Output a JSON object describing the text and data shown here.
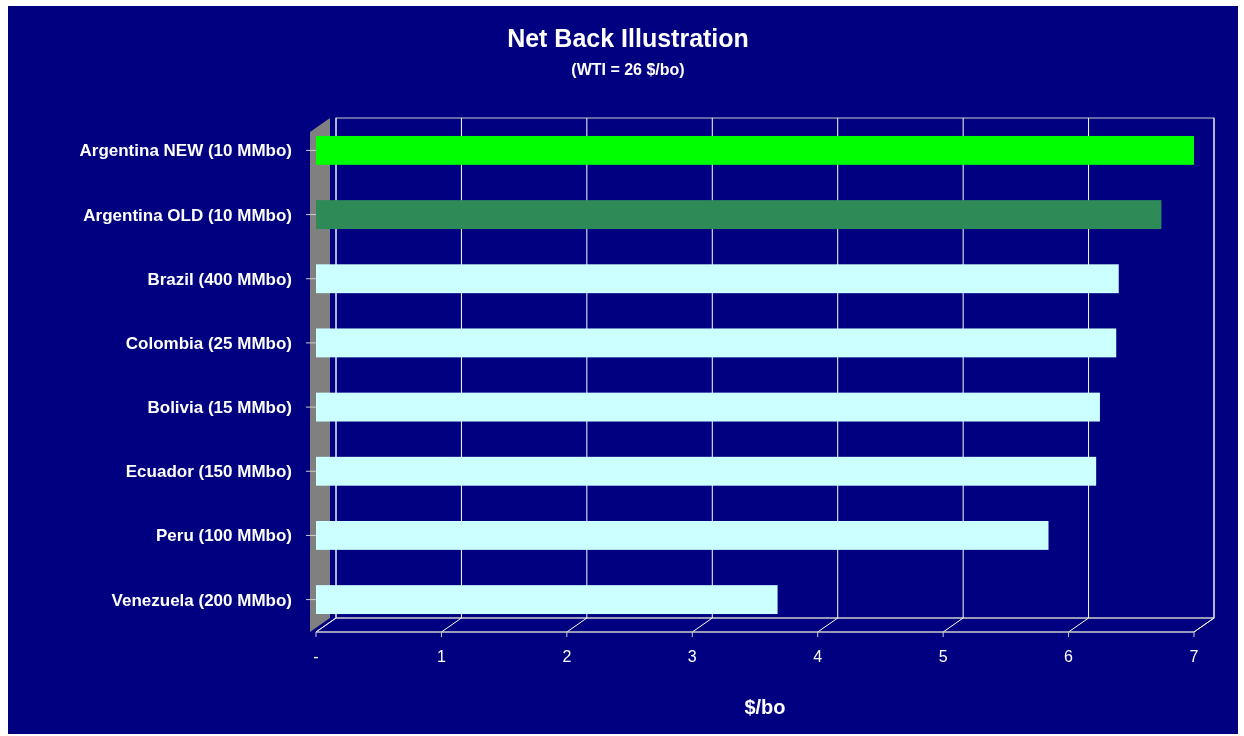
{
  "chart_data": {
    "type": "bar",
    "orientation": "horizontal",
    "title": "Net Back Illustration",
    "subtitle": "(WTI = 26 $/bo)",
    "xlabel": "$/bo",
    "categories": [
      "Argentina NEW (10 MMbo)",
      "Argentina OLD (10 MMbo)",
      "Brazil (400 MMbo)",
      "Colombia (25 MMbo)",
      "Bolivia (15 MMbo)",
      "Ecuador (150 MMbo)",
      "Peru (100 MMbo)",
      "Venezuela (200 MMbo)"
    ],
    "values": [
      7.0,
      6.74,
      6.4,
      6.38,
      6.25,
      6.22,
      5.84,
      3.68
    ],
    "colors": [
      "#00ff00",
      "#2e8b57",
      "#ccffff",
      "#ccffff",
      "#ccffff",
      "#ccffff",
      "#ccffff",
      "#ccffff"
    ],
    "xlim": [
      0,
      7
    ],
    "xticks": [
      {
        "value": 0,
        "label": "-"
      },
      1,
      2,
      3,
      4,
      5,
      6,
      7
    ],
    "grid": "x"
  }
}
